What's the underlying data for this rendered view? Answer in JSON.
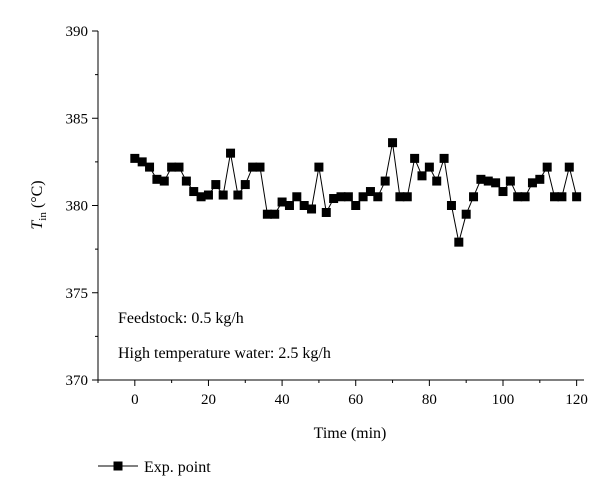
{
  "chart_data": {
    "type": "line",
    "title": "",
    "xlabel": "Time (min)",
    "ylabel": {
      "symbol": "T",
      "subscript": "in",
      "unit": "(°C)"
    },
    "xlim": [
      -10,
      122
    ],
    "ylim": [
      370,
      390
    ],
    "xticks": [
      0,
      20,
      40,
      60,
      80,
      100,
      120
    ],
    "yticks": [
      370,
      375,
      380,
      385,
      390
    ],
    "grid": false,
    "annotations": [
      "Feedstock: 0.5 kg/h",
      "High temperature water: 2.5 kg/h"
    ],
    "legend": {
      "position": "bottom-left",
      "label": "Exp. point"
    },
    "series": [
      {
        "name": "Exp. point",
        "marker": "square",
        "color": "#000000",
        "points": [
          [
            0,
            382.7
          ],
          [
            2,
            382.5
          ],
          [
            4,
            382.2
          ],
          [
            6,
            381.5
          ],
          [
            8,
            381.4
          ],
          [
            10,
            382.2
          ],
          [
            12,
            382.2
          ],
          [
            14,
            381.4
          ],
          [
            16,
            380.8
          ],
          [
            18,
            380.5
          ],
          [
            20,
            380.6
          ],
          [
            22,
            381.2
          ],
          [
            24,
            380.6
          ],
          [
            26,
            383.0
          ],
          [
            28,
            380.6
          ],
          [
            30,
            381.2
          ],
          [
            32,
            382.2
          ],
          [
            34,
            382.2
          ],
          [
            36,
            379.5
          ],
          [
            38,
            379.5
          ],
          [
            40,
            380.2
          ],
          [
            42,
            380.0
          ],
          [
            44,
            380.5
          ],
          [
            46,
            380.0
          ],
          [
            48,
            379.8
          ],
          [
            50,
            382.2
          ],
          [
            52,
            379.6
          ],
          [
            54,
            380.4
          ],
          [
            56,
            380.5
          ],
          [
            58,
            380.5
          ],
          [
            60,
            380.0
          ],
          [
            62,
            380.5
          ],
          [
            64,
            380.8
          ],
          [
            66,
            380.5
          ],
          [
            68,
            381.4
          ],
          [
            70,
            383.6
          ],
          [
            72,
            380.5
          ],
          [
            74,
            380.5
          ],
          [
            76,
            382.7
          ],
          [
            78,
            381.7
          ],
          [
            80,
            382.2
          ],
          [
            82,
            381.4
          ],
          [
            84,
            382.7
          ],
          [
            86,
            380.0
          ],
          [
            88,
            377.9
          ],
          [
            90,
            379.5
          ],
          [
            92,
            380.5
          ],
          [
            94,
            381.5
          ],
          [
            96,
            381.4
          ],
          [
            98,
            381.3
          ],
          [
            100,
            380.8
          ],
          [
            102,
            381.4
          ],
          [
            104,
            380.5
          ],
          [
            106,
            380.5
          ],
          [
            108,
            381.3
          ],
          [
            110,
            381.5
          ],
          [
            112,
            382.2
          ],
          [
            114,
            380.5
          ],
          [
            116,
            380.5
          ],
          [
            118,
            382.2
          ],
          [
            120,
            380.5
          ]
        ]
      }
    ]
  }
}
